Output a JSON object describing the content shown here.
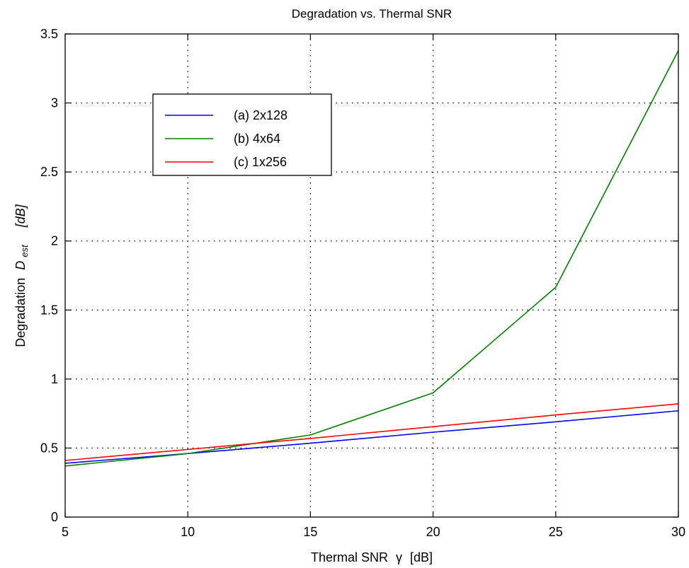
{
  "chart_data": {
    "type": "line",
    "title": "Degradation vs. Thermal SNR",
    "xlabel": {
      "text": "Thermal SNR",
      "symbol": "γ",
      "unit": "[dB]"
    },
    "ylabel": {
      "text": "Degradation",
      "symbol": "D",
      "subscript": "est",
      "unit": "[dB]"
    },
    "xlim": [
      5,
      30
    ],
    "ylim": [
      0,
      3.5
    ],
    "x_ticks": [
      5,
      10,
      15,
      20,
      25,
      30
    ],
    "y_ticks": [
      0,
      0.5,
      1,
      1.5,
      2,
      2.5,
      3,
      3.5
    ],
    "x_tick_labels": [
      "5",
      "10",
      "15",
      "20",
      "25",
      "30"
    ],
    "y_tick_labels": [
      "0",
      "0.5",
      "1",
      "1.5",
      "2",
      "2.5",
      "3",
      "3.5"
    ],
    "grid": true,
    "grid_style": "dotted",
    "legend_position": "upper-left",
    "series": [
      {
        "name": "(a) 2x128",
        "color": "#0000ff",
        "x": [
          5,
          10,
          15,
          20,
          25,
          30
        ],
        "y": [
          0.39,
          0.46,
          0.535,
          0.615,
          0.69,
          0.77
        ]
      },
      {
        "name": "(b) 4x64",
        "color": "#008000",
        "x": [
          5,
          10,
          15,
          20,
          25,
          30
        ],
        "y": [
          0.37,
          0.46,
          0.595,
          0.9,
          1.665,
          3.38
        ]
      },
      {
        "name": "(c) 1x256",
        "color": "#ff0000",
        "x": [
          5,
          10,
          15,
          20,
          25,
          30
        ],
        "y": [
          0.41,
          0.49,
          0.57,
          0.655,
          0.74,
          0.82
        ]
      }
    ]
  }
}
